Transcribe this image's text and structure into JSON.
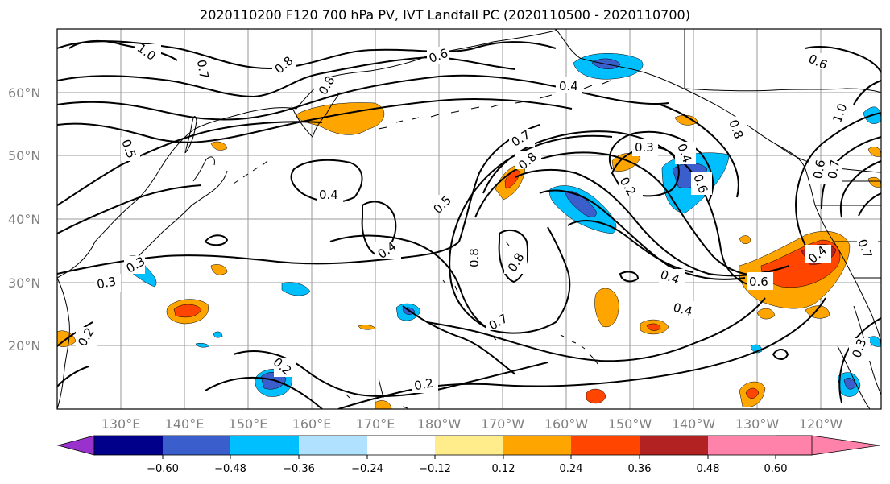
{
  "title": "2020110200 F120 700 hPa PV, IVT Landfall PC (2020110500 - 2020110700)",
  "lat_labels": [
    "60°N",
    "50°N",
    "40°N",
    "30°N",
    "20°N"
  ],
  "lon_labels": [
    "130°E",
    "140°E",
    "150°E",
    "160°E",
    "170°E",
    "180°W",
    "170°W",
    "160°W",
    "150°W",
    "140°W",
    "130°W",
    "120°W"
  ],
  "colorbar": {
    "ticks": [
      "−0.60",
      "−0.48",
      "−0.36",
      "−0.24",
      "−0.12",
      "0.12",
      "0.24",
      "0.36",
      "0.48",
      "0.60"
    ],
    "colors": [
      "#9932cc",
      "#00008b",
      "#3a5fcd",
      "#00bfff",
      "#b0e2ff",
      "#ffffff",
      "#ffec8b",
      "#ffa500",
      "#ff4500",
      "#b22222",
      "#ff82ab"
    ]
  },
  "contour_labels": [
    "1.0",
    "0.7",
    "0.8",
    "0.8",
    "0.6",
    "0.6",
    "0.4",
    "0.4",
    "0.8",
    "1.0",
    "0.5",
    "0.4",
    "0.5",
    "0.7",
    "0.8",
    "0.3",
    "0.2",
    "0.4",
    "0.6",
    "0.8",
    "0.4",
    "0.7",
    "0.8",
    "0.3",
    "0.4",
    "0.6",
    "0.4",
    "0.2",
    "0.2",
    "0.3",
    "0.2",
    "0.6",
    "0.7",
    "0.7",
    "0.3"
  ]
}
